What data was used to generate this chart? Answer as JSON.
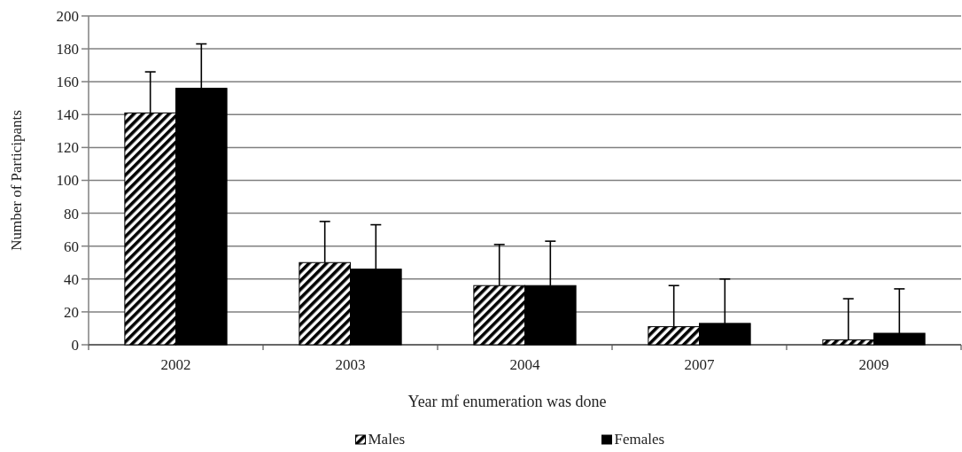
{
  "chart_data": {
    "type": "bar",
    "xlabel": "Year mf enumeration was done",
    "ylabel": "Number of Participants",
    "categories": [
      "2002",
      "2003",
      "2004",
      "2007",
      "2009"
    ],
    "series": [
      {
        "name": "Males",
        "color": "#000000",
        "values": [
          141,
          50,
          36,
          11,
          3
        ],
        "errors": [
          [
            141,
            166
          ],
          [
            50,
            75
          ],
          [
            36,
            61
          ],
          [
            11,
            36
          ],
          [
            3,
            28
          ]
        ]
      },
      {
        "name": "Females",
        "color": "#000000",
        "values": [
          156,
          46,
          36,
          13,
          7
        ],
        "errors": [
          [
            156,
            183
          ],
          [
            46,
            73
          ],
          [
            36,
            63
          ],
          [
            13,
            40
          ],
          [
            7,
            34
          ]
        ]
      }
    ],
    "ylim": [
      0,
      200
    ],
    "yticks": [
      0,
      20,
      40,
      60,
      80,
      100,
      120,
      140,
      160,
      180,
      200
    ],
    "grid": "y",
    "legend": "bottom"
  }
}
